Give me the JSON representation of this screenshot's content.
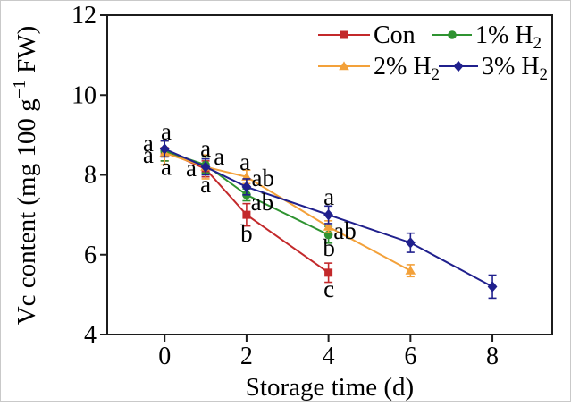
{
  "figure": {
    "background": "#ffffff",
    "border_color": "#c9c9c9"
  },
  "chart_data": {
    "type": "line",
    "title": "",
    "xlabel": "Storage time (d)",
    "ylabel_parts": {
      "pre": "Vc content (mg 100 g",
      "sup": "−1",
      "post": " FW)"
    },
    "xlim": [
      -1.4,
      9.46
    ],
    "ylim": [
      4,
      12
    ],
    "xticks": [
      0,
      2,
      4,
      6,
      8
    ],
    "yticks": [
      4,
      6,
      8,
      10,
      12
    ],
    "grid": false,
    "frame": true,
    "legend_position": "top-right-inside",
    "axis_color": "#1c1c1c",
    "text_color": "#000000",
    "series": [
      {
        "name_parts": {
          "pre": "Con",
          "sub": ""
        },
        "color": "#c3292b",
        "marker": "square",
        "x": [
          0,
          1,
          2,
          4
        ],
        "y": [
          8.6,
          8.15,
          7.0,
          5.55
        ],
        "yerr": [
          0.25,
          0.2,
          0.28,
          0.24
        ]
      },
      {
        "name_parts": {
          "pre": "1% H",
          "sub": "2"
        },
        "color": "#2f9331",
        "marker": "circle",
        "x": [
          0,
          1,
          2,
          4
        ],
        "y": [
          8.6,
          8.25,
          7.5,
          6.5
        ],
        "yerr": [
          0.25,
          0.2,
          0.15,
          0.21
        ]
      },
      {
        "name_parts": {
          "pre": "2% H",
          "sub": "2"
        },
        "color": "#f3a13a",
        "marker": "triangle",
        "x": [
          0,
          1,
          2,
          4,
          6
        ],
        "y": [
          8.55,
          8.2,
          7.95,
          6.7,
          5.6
        ],
        "yerr": [
          0.3,
          0.3,
          0.17,
          0.15,
          0.15
        ]
      },
      {
        "name_parts": {
          "pre": "3% H",
          "sub": "2"
        },
        "color": "#20208d",
        "marker": "diamond",
        "x": [
          0,
          1,
          2,
          4,
          6,
          8
        ],
        "y": [
          8.65,
          8.2,
          7.7,
          7.0,
          6.3,
          5.2
        ],
        "yerr": [
          0.2,
          0.2,
          0.2,
          0.22,
          0.24,
          0.29
        ]
      }
    ],
    "annotations": [
      {
        "text": "a",
        "x": 0.04,
        "y": 9.04
      },
      {
        "text": "a",
        "x": -0.4,
        "y": 8.75
      },
      {
        "text": "a",
        "x": -0.4,
        "y": 8.46
      },
      {
        "text": "a",
        "x": 0.04,
        "y": 8.16
      },
      {
        "text": "a",
        "x": 1.0,
        "y": 8.62
      },
      {
        "text": "a",
        "x": 1.33,
        "y": 8.41
      },
      {
        "text": "a",
        "x": 0.65,
        "y": 8.12
      },
      {
        "text": "a",
        "x": 1.0,
        "y": 7.72
      },
      {
        "text": "a",
        "x": 1.96,
        "y": 8.28
      },
      {
        "text": "ab",
        "x": 2.4,
        "y": 7.88
      },
      {
        "text": "ab",
        "x": 2.38,
        "y": 7.27
      },
      {
        "text": "b",
        "x": 2.0,
        "y": 6.49
      },
      {
        "text": "a",
        "x": 4.01,
        "y": 7.41
      },
      {
        "text": "ab",
        "x": 4.4,
        "y": 6.55
      },
      {
        "text": "b",
        "x": 4.01,
        "y": 6.13
      },
      {
        "text": "c",
        "x": 4.01,
        "y": 5.1
      }
    ]
  }
}
